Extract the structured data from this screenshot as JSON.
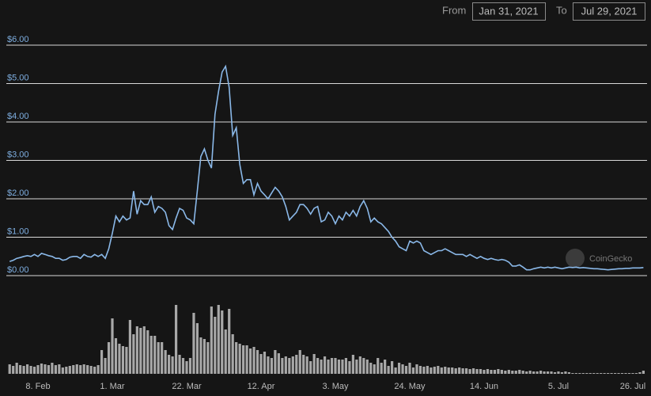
{
  "chart_data": {
    "type": "line",
    "from_label": "From",
    "from_date": "Jan 31, 2021",
    "to_label": "To",
    "to_date": "Jul 29, 2021",
    "watermark": "CoinGecko",
    "categories": [
      null,
      null,
      null,
      null,
      null,
      null,
      null,
      null,
      "8. Feb",
      null,
      null,
      null,
      null,
      null,
      null,
      null,
      null,
      null,
      null,
      null,
      null,
      null,
      null,
      null,
      null,
      null,
      null,
      null,
      null,
      "1. Mar",
      null,
      null,
      null,
      null,
      null,
      null,
      null,
      null,
      null,
      null,
      null,
      null,
      null,
      null,
      null,
      null,
      null,
      null,
      null,
      null,
      "22. Mar",
      null,
      null,
      null,
      null,
      null,
      null,
      null,
      null,
      null,
      null,
      null,
      null,
      null,
      null,
      null,
      null,
      null,
      null,
      null,
      null,
      "12. Apr",
      null,
      null,
      null,
      null,
      null,
      null,
      null,
      null,
      null,
      null,
      null,
      null,
      null,
      null,
      null,
      null,
      null,
      null,
      null,
      null,
      "3. May",
      null,
      null,
      null,
      null,
      null,
      null,
      null,
      null,
      null,
      null,
      null,
      null,
      null,
      null,
      null,
      null,
      null,
      null,
      null,
      null,
      "24. May",
      null,
      null,
      null,
      null,
      null,
      null,
      null,
      null,
      null,
      null,
      null,
      null,
      null,
      null,
      null,
      null,
      null,
      null,
      null,
      null,
      "14. Jun",
      null,
      null,
      null,
      null,
      null,
      null,
      null,
      null,
      null,
      null,
      null,
      null,
      null,
      null,
      null,
      null,
      null,
      null,
      null,
      null,
      "5. Jul",
      null,
      null,
      null,
      null,
      null,
      null,
      null,
      null,
      null,
      null,
      null,
      null,
      null,
      null,
      null,
      null,
      null,
      null,
      null,
      null,
      "26. Jul",
      null,
      null,
      null
    ],
    "series": [
      {
        "name": "Price",
        "color": "#8ab8e8",
        "values": [
          0.37,
          0.4,
          0.45,
          0.47,
          0.5,
          0.52,
          0.5,
          0.55,
          0.5,
          0.58,
          0.55,
          0.52,
          0.5,
          0.45,
          0.45,
          0.4,
          0.42,
          0.48,
          0.5,
          0.5,
          0.45,
          0.55,
          0.5,
          0.48,
          0.55,
          0.5,
          0.55,
          0.45,
          0.7,
          1.1,
          1.55,
          1.4,
          1.55,
          1.45,
          1.5,
          2.2,
          1.6,
          1.95,
          1.85,
          1.85,
          2.05,
          1.65,
          1.8,
          1.75,
          1.65,
          1.3,
          1.2,
          1.5,
          1.75,
          1.7,
          1.5,
          1.45,
          1.35,
          2.2,
          3.1,
          3.3,
          3.0,
          2.8,
          4.2,
          4.8,
          5.3,
          5.45,
          4.9,
          3.65,
          3.85,
          2.9,
          2.4,
          2.5,
          2.5,
          2.1,
          2.4,
          2.2,
          2.1,
          2.0,
          2.15,
          2.3,
          2.2,
          2.05,
          1.8,
          1.45,
          1.55,
          1.65,
          1.85,
          1.85,
          1.75,
          1.6,
          1.75,
          1.8,
          1.4,
          1.45,
          1.65,
          1.55,
          1.35,
          1.55,
          1.45,
          1.65,
          1.55,
          1.7,
          1.55,
          1.8,
          1.95,
          1.75,
          1.4,
          1.5,
          1.4,
          1.35,
          1.25,
          1.15,
          1.0,
          0.9,
          0.75,
          0.7,
          0.65,
          0.9,
          0.85,
          0.9,
          0.85,
          0.65,
          0.6,
          0.55,
          0.6,
          0.65,
          0.65,
          0.7,
          0.65,
          0.6,
          0.55,
          0.55,
          0.55,
          0.5,
          0.55,
          0.5,
          0.45,
          0.5,
          0.45,
          0.42,
          0.45,
          0.42,
          0.4,
          0.42,
          0.4,
          0.35,
          0.25,
          0.25,
          0.28,
          0.22,
          0.15,
          0.15,
          0.18,
          0.2,
          0.22,
          0.2,
          0.22,
          0.2,
          0.22,
          0.2,
          0.18,
          0.2,
          0.22,
          0.21,
          0.22,
          0.2,
          0.21,
          0.2,
          0.19,
          0.18,
          0.18,
          0.17,
          0.16,
          0.15,
          0.16,
          0.17,
          0.18,
          0.18,
          0.19,
          0.19,
          0.2,
          0.2,
          0.2,
          0.21
        ]
      },
      {
        "name": "Volume",
        "color": "#a8a8a8",
        "axis": "y2",
        "values": [
          12,
          10,
          14,
          11,
          10,
          12,
          10,
          9,
          11,
          13,
          12,
          11,
          14,
          11,
          12,
          8,
          9,
          10,
          11,
          12,
          11,
          12,
          11,
          10,
          9,
          11,
          30,
          20,
          40,
          70,
          45,
          38,
          35,
          34,
          68,
          50,
          60,
          58,
          60,
          55,
          48,
          48,
          40,
          40,
          30,
          24,
          22,
          87,
          24,
          20,
          16,
          20,
          77,
          64,
          46,
          44,
          40,
          85,
          72,
          87,
          80,
          56,
          82,
          50,
          40,
          38,
          36,
          36,
          32,
          34,
          30,
          25,
          28,
          22,
          20,
          30,
          26,
          20,
          22,
          20,
          22,
          24,
          30,
          24,
          22,
          16,
          25,
          20,
          18,
          22,
          18,
          20,
          20,
          18,
          18,
          20,
          16,
          24,
          18,
          22,
          20,
          18,
          14,
          12,
          20,
          14,
          18,
          10,
          16,
          8,
          14,
          12,
          10,
          14,
          8,
          12,
          10,
          9,
          10,
          8,
          9,
          10,
          8,
          9,
          8,
          8,
          7,
          8,
          7,
          7,
          6,
          7,
          6,
          6,
          5,
          6,
          5,
          5,
          6,
          5,
          4,
          5,
          4,
          4,
          5,
          4,
          3,
          4,
          3,
          3,
          4,
          3,
          3,
          3,
          2,
          3,
          2,
          3,
          2,
          1,
          1,
          1,
          1,
          1,
          1,
          1,
          1,
          1,
          1,
          1,
          1,
          1,
          1,
          1,
          1,
          1,
          1,
          1,
          2,
          4
        ]
      }
    ],
    "ylim": [
      0,
      6.2
    ],
    "yticks": [
      {
        "value": 0,
        "label": "$0.00"
      },
      {
        "value": 1,
        "label": "$1.00"
      },
      {
        "value": 2,
        "label": "$2.00"
      },
      {
        "value": 3,
        "label": "$3.00"
      },
      {
        "value": 4,
        "label": "$4.00"
      },
      {
        "value": 5,
        "label": "$5.00"
      },
      {
        "value": 6,
        "label": "$6.00"
      }
    ],
    "y2lim": [
      0,
      100
    ],
    "grid": true
  }
}
